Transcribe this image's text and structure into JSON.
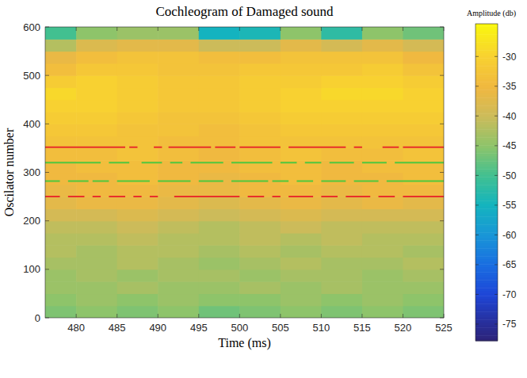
{
  "chart_data": {
    "type": "heatmap",
    "title": "Cochleogram of Damaged sound",
    "xlabel": "Time (ms)",
    "ylabel": "Oscilator number",
    "xlim": [
      476.2,
      525
    ],
    "ylim": [
      0,
      600
    ],
    "xticks": [
      480,
      485,
      490,
      495,
      500,
      505,
      510,
      515,
      520,
      525
    ],
    "yticks": [
      0,
      100,
      200,
      300,
      400,
      500,
      600
    ],
    "x_edges": [
      476.2,
      480,
      485,
      490,
      495,
      500,
      505,
      510,
      515,
      520,
      525
    ],
    "y_edges": [
      0,
      25,
      50,
      75,
      100,
      125,
      150,
      175,
      200,
      225,
      250,
      275,
      300,
      325,
      350,
      375,
      400,
      425,
      450,
      475,
      500,
      525,
      550,
      575,
      600
    ],
    "cells": [
      [
        -46,
        -45,
        -46,
        -45,
        -47,
        -46,
        -45,
        -46,
        -45,
        -46
      ],
      [
        -45,
        -44,
        -45,
        -44,
        -45,
        -45,
        -44,
        -45,
        -44,
        -45
      ],
      [
        -44,
        -44,
        -43,
        -44,
        -44,
        -43,
        -44,
        -43,
        -44,
        -44
      ],
      [
        -44,
        -43,
        -44,
        -43,
        -43,
        -44,
        -43,
        -43,
        -44,
        -43
      ],
      [
        -43,
        -43,
        -42,
        -43,
        -44,
        -43,
        -42,
        -43,
        -43,
        -42
      ],
      [
        -42,
        -43,
        -42,
        -42,
        -43,
        -42,
        -43,
        -42,
        -42,
        -43
      ],
      [
        -42,
        -42,
        -41,
        -42,
        -42,
        -41,
        -42,
        -41,
        -42,
        -42
      ],
      [
        -41,
        -41,
        -40,
        -41,
        -42,
        -41,
        -40,
        -41,
        -41,
        -41
      ],
      [
        -39,
        -39,
        -38,
        -39,
        -40,
        -39,
        -38,
        -39,
        -39,
        -39
      ],
      [
        -37,
        -36,
        -36,
        -37,
        -38,
        -37,
        -36,
        -37,
        -36,
        -37
      ],
      [
        -36,
        -35,
        -35,
        -36,
        -36,
        -35,
        -35,
        -36,
        -35,
        -35
      ],
      [
        -35,
        -35,
        -34,
        -35,
        -36,
        -35,
        -34,
        -35,
        -35,
        -34
      ],
      [
        -35,
        -34,
        -34,
        -35,
        -35,
        -34,
        -34,
        -35,
        -34,
        -34
      ],
      [
        -34,
        -34,
        -33,
        -34,
        -35,
        -34,
        -33,
        -34,
        -34,
        -33
      ],
      [
        -33,
        -33,
        -33,
        -34,
        -34,
        -33,
        -33,
        -33,
        -33,
        -33
      ],
      [
        -32,
        -32,
        -33,
        -33,
        -34,
        -33,
        -32,
        -32,
        -32,
        -32
      ],
      [
        -31,
        -31,
        -32,
        -33,
        -33,
        -32,
        -31,
        -31,
        -31,
        -31
      ],
      [
        -30,
        -30,
        -31,
        -32,
        -32,
        -31,
        -30,
        -30,
        -30,
        -30
      ],
      [
        -29,
        -30,
        -31,
        -32,
        -32,
        -31,
        -30,
        -29,
        -29,
        -30
      ],
      [
        -31,
        -30,
        -31,
        -32,
        -32,
        -31,
        -31,
        -30,
        -30,
        -31
      ],
      [
        -34,
        -32,
        -32,
        -33,
        -33,
        -32,
        -32,
        -32,
        -31,
        -33
      ],
      [
        -36,
        -34,
        -33,
        -33,
        -34,
        -34,
        -33,
        -33,
        -33,
        -35
      ],
      [
        -42,
        -38,
        -37,
        -37,
        -40,
        -40,
        -37,
        -39,
        -37,
        -39
      ],
      [
        -50,
        -45,
        -44,
        -44,
        -55,
        -54,
        -45,
        -52,
        -45,
        -47
      ]
    ],
    "color_range": [
      -77.8,
      -24.5
    ],
    "color_ticks": [
      -75,
      -70,
      -65,
      -60,
      -55,
      -50,
      -45,
      -40,
      -35,
      -30
    ],
    "color_label": "Amplitude (db)",
    "series": [
      {
        "type": "line",
        "color": "#e8302a",
        "line_style": "dashed",
        "x": [
          476.2,
          486,
          486.2,
          486.5,
          487.5,
          488.5,
          489.5,
          490.5,
          490.9,
          491.3,
          496.5,
          496.8,
          497,
          499.5,
          499.8,
          500,
          505,
          505.5,
          506,
          513,
          513.5,
          514,
          515,
          516.2,
          517.5,
          519.5,
          519.8,
          520,
          525
        ],
        "values": [
          352,
          352,
          null,
          352,
          352,
          null,
          352,
          352,
          null,
          352,
          352,
          null,
          352,
          352,
          null,
          352,
          352,
          null,
          352,
          352,
          null,
          352,
          352,
          null,
          352,
          352,
          null,
          352,
          352
        ]
      },
      {
        "type": "line",
        "color": "#4fc83e",
        "line_style": "dashed",
        "x": [
          476.2,
          483,
          483.5,
          484,
          486.5,
          487.2,
          488,
          490.5,
          491,
          491.5,
          493,
          493.5,
          494,
          498,
          498.5,
          499,
          504,
          504.5,
          505,
          507,
          507.5,
          508,
          510,
          510.5,
          511,
          514,
          514.5,
          515,
          518,
          518.5,
          519,
          525
        ],
        "values": [
          320,
          320,
          null,
          320,
          320,
          null,
          320,
          320,
          null,
          320,
          320,
          null,
          320,
          320,
          null,
          320,
          320,
          null,
          320,
          320,
          null,
          320,
          320,
          null,
          320,
          320,
          null,
          320,
          320,
          null,
          320,
          320
        ]
      },
      {
        "type": "line",
        "color": "#4fc83e",
        "line_style": "dashed",
        "x": [
          476.2,
          478,
          478.5,
          479,
          481.5,
          481.8,
          482,
          484,
          484.5,
          485,
          489,
          489.5,
          490,
          494,
          494.5,
          495,
          498,
          498.5,
          499,
          503.5,
          503.8,
          504,
          506,
          506.5,
          507,
          509,
          509.5,
          510,
          513,
          513.5,
          514,
          517,
          517.5,
          518,
          525
        ],
        "values": [
          282,
          282,
          null,
          282,
          282,
          null,
          282,
          282,
          null,
          282,
          282,
          null,
          282,
          282,
          null,
          282,
          282,
          null,
          282,
          282,
          null,
          282,
          282,
          null,
          282,
          282,
          null,
          282,
          282,
          null,
          282,
          282,
          null,
          282,
          282
        ]
      },
      {
        "type": "line",
        "color": "#e8302a",
        "line_style": "dashed",
        "x": [
          476.2,
          478,
          478.5,
          479,
          481,
          481.5,
          482,
          483,
          483.5,
          484,
          486,
          486.5,
          487,
          488,
          488.5,
          489,
          490,
          491,
          492,
          500,
          500.5,
          501,
          503,
          503.5,
          504,
          505,
          505.5,
          506,
          509,
          509.5,
          510,
          512,
          512.5,
          513,
          516,
          516.5,
          517,
          519,
          519.5,
          520,
          525
        ],
        "values": [
          250,
          250,
          null,
          250,
          250,
          null,
          250,
          250,
          null,
          250,
          250,
          null,
          250,
          250,
          null,
          250,
          250,
          null,
          250,
          250,
          null,
          250,
          250,
          null,
          250,
          250,
          null,
          250,
          250,
          null,
          250,
          250,
          null,
          250,
          250,
          null,
          250,
          250,
          null,
          250,
          250
        ]
      }
    ]
  }
}
